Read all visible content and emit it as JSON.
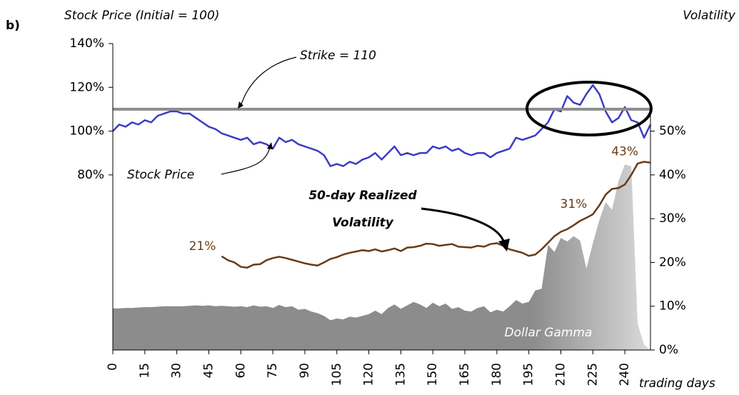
{
  "chart_data": {
    "type": "line",
    "panel_label": "b)",
    "y_label": "Stock Price (Initial = 100)",
    "y2_label": "Volatility",
    "x_label": "trading days",
    "xlim": [
      0,
      252
    ],
    "xticks": [
      0,
      15,
      30,
      45,
      60,
      75,
      90,
      105,
      120,
      135,
      150,
      165,
      180,
      195,
      210,
      225,
      240
    ],
    "ylim": [
      0,
      140
    ],
    "yticks": [
      {
        "value": 80,
        "label": "80%"
      },
      {
        "value": 100,
        "label": "100%"
      },
      {
        "value": 120,
        "label": "120%"
      },
      {
        "value": 140,
        "label": "140%"
      }
    ],
    "y2lim": [
      0,
      70
    ],
    "y2ticks": [
      {
        "value": 0,
        "label": "0%"
      },
      {
        "value": 10,
        "label": "10%"
      },
      {
        "value": 20,
        "label": "20%"
      },
      {
        "value": 30,
        "label": "30%"
      },
      {
        "value": 40,
        "label": "40%"
      },
      {
        "value": 50,
        "label": "50%"
      }
    ],
    "strike": 110,
    "strike_label": "Strike = 110",
    "strike_color": "#8c8c8c",
    "x": [
      0,
      3,
      6,
      9,
      12,
      15,
      18,
      21,
      24,
      27,
      30,
      33,
      36,
      39,
      42,
      45,
      48,
      51,
      54,
      57,
      60,
      63,
      66,
      69,
      72,
      75,
      78,
      81,
      84,
      87,
      90,
      93,
      96,
      99,
      102,
      105,
      108,
      111,
      114,
      117,
      120,
      123,
      126,
      129,
      132,
      135,
      138,
      141,
      144,
      147,
      150,
      153,
      156,
      159,
      162,
      165,
      168,
      171,
      174,
      177,
      180,
      183,
      186,
      189,
      192,
      195,
      198,
      201,
      204,
      207,
      210,
      213,
      216,
      219,
      222,
      225,
      228,
      231,
      234,
      237,
      240,
      243,
      246,
      249,
      252
    ],
    "series": [
      {
        "name": "Stock Price",
        "color": "#3c3cc4",
        "kind": "line",
        "values": [
          100,
          103,
          102,
          104,
          103,
          105,
          104,
          107,
          108,
          109,
          109,
          108,
          108,
          106,
          104,
          102,
          101,
          99,
          98,
          97,
          96,
          97,
          94,
          95,
          94,
          92,
          97,
          95,
          96,
          94,
          93,
          92,
          91,
          89,
          84,
          85,
          84,
          86,
          85,
          87,
          88,
          90,
          87,
          90,
          93,
          89,
          90,
          89,
          90,
          90,
          93,
          92,
          93,
          91,
          92,
          90,
          89,
          90,
          90,
          88,
          90,
          91,
          92,
          97,
          96,
          97,
          98,
          101,
          104,
          110,
          109,
          116,
          113,
          112,
          117,
          121,
          117,
          109,
          104,
          106,
          111,
          105,
          104,
          97,
          103
        ]
      },
      {
        "name": "50-day Realized Volatility",
        "name_lines": [
          "50-day Realized",
          "Volatility"
        ],
        "color": "#6b3a12",
        "kind": "line",
        "axis": "y2",
        "values": [
          null,
          null,
          null,
          null,
          null,
          null,
          null,
          null,
          null,
          null,
          null,
          null,
          null,
          null,
          null,
          null,
          null,
          21.4,
          20.5,
          20,
          19,
          18.8,
          19.5,
          19.6,
          20.5,
          21,
          21.3,
          21,
          20.6,
          20.2,
          19.8,
          19.5,
          19.3,
          20,
          20.8,
          21.2,
          21.8,
          22.2,
          22.5,
          22.8,
          22.6,
          23,
          22.5,
          22.8,
          23.2,
          22.6,
          23.4,
          23.5,
          23.8,
          24.3,
          24.2,
          23.8,
          24,
          24.2,
          23.6,
          23.5,
          23.4,
          23.8,
          23.6,
          24.2,
          24.4,
          23.8,
          23,
          22.6,
          22.2,
          21.5,
          21.8,
          23,
          24.5,
          26,
          27,
          27.6,
          28.5,
          29.5,
          30.2,
          31,
          33,
          35.5,
          36.8,
          37,
          37.8,
          40,
          42.6,
          43,
          42.8
        ],
        "value_labels": [
          null,
          null,
          null,
          null,
          null,
          null,
          null,
          null,
          null,
          null,
          null,
          null,
          null,
          null,
          null,
          null,
          null,
          "21%",
          null,
          null,
          null,
          null,
          null,
          null,
          null,
          null,
          null,
          null,
          null,
          null,
          null,
          null,
          null,
          null,
          null,
          null,
          null,
          null,
          null,
          null,
          null,
          null,
          null,
          null,
          null,
          null,
          null,
          null,
          null,
          null,
          null,
          null,
          null,
          null,
          null,
          null,
          null,
          null,
          null,
          null,
          null,
          null,
          null,
          null,
          null,
          null,
          null,
          null,
          null,
          null,
          null,
          null,
          null,
          null,
          null,
          "31%",
          null,
          null,
          null,
          null,
          null,
          null,
          null,
          "43%",
          null
        ]
      },
      {
        "name": "Dollar Gamma",
        "color": "#8c8c8c",
        "kind": "area",
        "axis": "y2",
        "values": [
          9.5,
          9.5,
          9.6,
          9.6,
          9.7,
          9.8,
          9.8,
          9.9,
          10,
          10,
          10,
          10,
          10.1,
          10.2,
          10.1,
          10.2,
          10,
          10.1,
          10,
          9.9,
          10,
          9.8,
          10.2,
          9.9,
          10,
          9.6,
          10.3,
          9.8,
          10,
          9.2,
          9.4,
          8.8,
          8.4,
          7.8,
          6.8,
          7.2,
          7,
          7.6,
          7.4,
          7.8,
          8.2,
          9,
          8.2,
          9.6,
          10.4,
          9.4,
          10.2,
          11,
          10.4,
          9.6,
          10.8,
          10,
          10.6,
          9.4,
          9.8,
          9,
          8.8,
          9.6,
          10,
          8.6,
          9.2,
          8.8,
          10,
          11.4,
          10.6,
          11,
          13.6,
          14,
          24,
          22.4,
          25.6,
          24.8,
          26,
          25,
          18.6,
          24.4,
          29.6,
          33.8,
          32,
          38.6,
          42.4,
          42,
          6,
          1.2,
          0
        ]
      }
    ]
  }
}
